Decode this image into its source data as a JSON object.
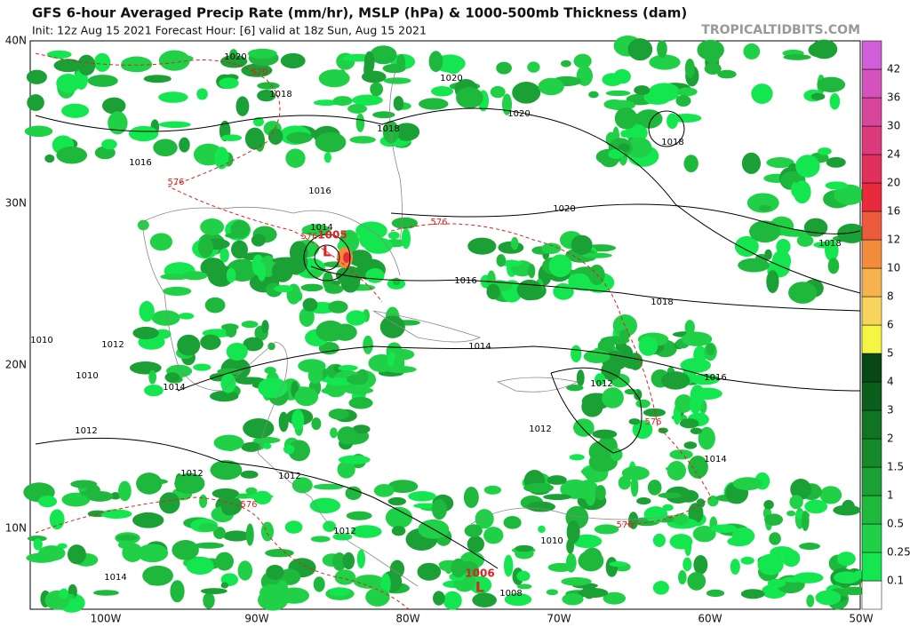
{
  "header": {
    "title": "GFS 6-hour Averaged Precip Rate (mm/hr), MSLP (hPa) & 1000-500mb Thickness (dam)",
    "subtitle": "Init: 12z Aug 15 2021   Forecast Hour: [6]   valid at 18z Sun, Aug 15 2021",
    "site": "TROPICALTIDBITS.COM"
  },
  "map": {
    "lat_labels": [
      "40N",
      "30N",
      "20N",
      "10N"
    ],
    "lon_labels": [
      "100W",
      "90W",
      "80W",
      "70W",
      "60W",
      "50W"
    ],
    "contour_labels": [
      "1020",
      "1018",
      "1020",
      "1018",
      "1020",
      "1018",
      "1016",
      "1016",
      "1020",
      "1018",
      "1014",
      "576",
      "1005",
      "1016",
      "1018",
      "1014",
      "1010",
      "1012",
      "1010",
      "1014",
      "1012",
      "1016",
      "1012",
      "1012",
      "1014",
      "1012",
      "1012",
      "576",
      "576",
      "1012",
      "1010",
      "576",
      "1014",
      "1006",
      "1008",
      "570",
      "576",
      "576",
      "L",
      "L"
    ]
  },
  "colorbar": {
    "levels": [
      0.1,
      0.25,
      0.5,
      1,
      1.5,
      2,
      3,
      4,
      5,
      6,
      8,
      10,
      12,
      16,
      20,
      24,
      30,
      36,
      42
    ],
    "colors": [
      "#ffffff",
      "#14e650",
      "#20d046",
      "#1eb83c",
      "#1aa034",
      "#15892b",
      "#107424",
      "#0b5e1c",
      "#074814",
      "#f5f542",
      "#f7d45c",
      "#f5b24e",
      "#f08c3c",
      "#ec5c3c",
      "#e82a3c",
      "#e0305c",
      "#dc3a7c",
      "#d8469c",
      "#d452bc",
      "#d05ed8"
    ]
  }
}
